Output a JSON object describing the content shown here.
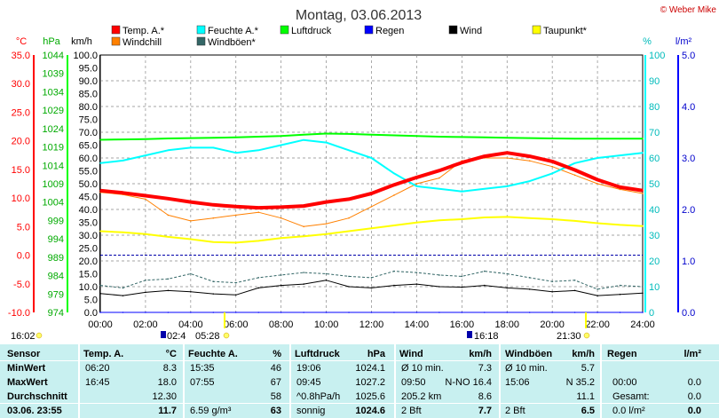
{
  "header": {
    "title": "Montag, 03.06.2013",
    "copyright": "© Weber Mike"
  },
  "legend": [
    {
      "label": "Temp. A.*",
      "color": "#ff0000"
    },
    {
      "label": "Feuchte A.*",
      "color": "#00ffff"
    },
    {
      "label": "Luftdruck",
      "color": "#00ff00"
    },
    {
      "label": "Regen",
      "color": "#0000ff"
    },
    {
      "label": "Wind",
      "color": "#000000"
    },
    {
      "label": "Taupunkt*",
      "color": "#ffff00"
    },
    {
      "label": "Windchill",
      "color": "#ff8000"
    },
    {
      "label": "Windböen*",
      "color": "#336666"
    }
  ],
  "axis_units": {
    "temp": "°C",
    "pressure": "hPa",
    "wind": "km/h",
    "humidity": "%",
    "rain": "l/m²"
  },
  "chart_data": {
    "type": "line",
    "x": [
      "00:00",
      "01:00",
      "02:00",
      "03:00",
      "04:00",
      "05:00",
      "06:00",
      "07:00",
      "08:00",
      "09:00",
      "10:00",
      "11:00",
      "12:00",
      "13:00",
      "14:00",
      "15:00",
      "16:00",
      "17:00",
      "18:00",
      "19:00",
      "20:00",
      "21:00",
      "22:00",
      "23:00",
      "24:00"
    ],
    "x_ticks": [
      "00:00",
      "02:00",
      "04:00",
      "06:00",
      "08:00",
      "10:00",
      "12:00",
      "14:00",
      "16:00",
      "18:00",
      "20:00",
      "22:00",
      "24:00"
    ],
    "axes": {
      "temp": {
        "label": "°C",
        "ylim": [
          -10,
          35
        ],
        "ticks": [
          "35.0",
          "30.0",
          "25.0",
          "20.0",
          "15.0",
          "10.0",
          "5.0",
          "0.0",
          "-5.0",
          "-10.0"
        ]
      },
      "pressure": {
        "label": "hPa",
        "ylim": [
          974,
          1049
        ],
        "ticks": [
          "1044",
          "1039",
          "1034",
          "1029",
          "1024",
          "1019",
          "1014",
          "1009",
          "1004",
          "999",
          "994",
          "989",
          "984",
          "979",
          "974"
        ]
      },
      "wind": {
        "label": "km/h",
        "ylim": [
          0,
          100
        ],
        "ticks": [
          "100.0",
          "95.0",
          "90.0",
          "85.0",
          "80.0",
          "75.0",
          "70.0",
          "65.0",
          "60.0",
          "55.0",
          "50.0",
          "45.0",
          "40.0",
          "35.0",
          "30.0",
          "25.0",
          "20.0",
          "15.0",
          "10.0",
          "5.0",
          "0.0"
        ]
      },
      "humidity": {
        "label": "%",
        "ylim": [
          0,
          100
        ],
        "ticks": [
          "100",
          "90",
          "80",
          "70",
          "60",
          "50",
          "40",
          "30",
          "20",
          "10",
          "0"
        ]
      },
      "rain": {
        "label": "l/m²",
        "ylim": [
          0,
          5
        ],
        "ticks": [
          "5.0",
          "4.0",
          "3.0",
          "2.0",
          "1.0",
          "0.0"
        ]
      }
    },
    "series": [
      {
        "name": "Temp. A.*",
        "axis": "temp",
        "color": "#ff0000",
        "values": [
          11.3,
          10.9,
          10.4,
          9.9,
          9.3,
          8.8,
          8.5,
          8.3,
          8.4,
          8.6,
          9.3,
          9.8,
          10.8,
          12.3,
          13.6,
          14.8,
          16.2,
          17.3,
          17.9,
          17.3,
          16.4,
          14.9,
          13.2,
          11.9,
          11.3
        ]
      },
      {
        "name": "Windchill",
        "axis": "temp",
        "color": "#ff8000",
        "values": [
          11.0,
          10.6,
          9.8,
          7.0,
          6.0,
          6.5,
          7.0,
          7.5,
          6.5,
          5.0,
          5.5,
          6.5,
          8.5,
          10.5,
          12.5,
          13.5,
          16.5,
          17.0,
          17.0,
          16.5,
          15.5,
          14.0,
          12.5,
          11.5,
          10.8
        ]
      },
      {
        "name": "Taupunkt*",
        "axis": "temp",
        "color": "#ffff00",
        "values": [
          4.2,
          4.0,
          3.7,
          3.2,
          2.8,
          2.3,
          2.2,
          2.5,
          3.0,
          3.3,
          3.7,
          4.2,
          4.7,
          5.2,
          5.7,
          6.1,
          6.3,
          6.6,
          6.7,
          6.5,
          6.3,
          6.0,
          5.6,
          5.3,
          5.1
        ]
      },
      {
        "name": "Feuchte A.*",
        "axis": "humidity",
        "color": "#00ffff",
        "values": [
          58,
          59,
          61,
          63,
          64,
          64,
          62,
          63,
          65,
          67,
          66,
          63,
          60,
          54,
          49,
          48,
          47,
          48,
          49,
          51,
          54,
          58,
          60,
          61,
          62
        ]
      },
      {
        "name": "Luftdruck",
        "axis": "pressure",
        "color": "#00ff00",
        "values": [
          1024.3,
          1024.4,
          1024.5,
          1024.7,
          1024.8,
          1024.9,
          1025.0,
          1025.2,
          1025.4,
          1025.8,
          1026.1,
          1026.0,
          1025.8,
          1025.6,
          1025.4,
          1025.2,
          1025.1,
          1025.0,
          1024.9,
          1024.8,
          1024.7,
          1024.6,
          1024.6,
          1024.6,
          1024.6
        ]
      },
      {
        "name": "Wind",
        "axis": "wind",
        "color": "#000000",
        "values": [
          7.3,
          6.5,
          7.8,
          8.5,
          8.0,
          7.2,
          6.8,
          9.5,
          10.5,
          11.0,
          12.5,
          10.0,
          9.5,
          10.5,
          11.0,
          10.0,
          9.8,
          10.5,
          9.5,
          9.0,
          8.0,
          8.5,
          6.5,
          7.0,
          7.5
        ]
      },
      {
        "name": "Windböen*",
        "axis": "wind",
        "color": "#336666",
        "values": [
          10.5,
          9.5,
          12.5,
          13.0,
          15.0,
          12.0,
          11.5,
          13.5,
          14.5,
          15.5,
          15.0,
          14.0,
          13.5,
          16.0,
          15.5,
          14.5,
          14.0,
          16.0,
          15.0,
          13.5,
          12.0,
          12.5,
          9.0,
          10.5,
          10.0
        ]
      },
      {
        "name": "Regen",
        "axis": "rain",
        "color": "#0000ff",
        "values": [
          0,
          0,
          0,
          0,
          0,
          0,
          0,
          0,
          0,
          0,
          0,
          0,
          0,
          0,
          0,
          0,
          0,
          0,
          0,
          0,
          0,
          0,
          0,
          0,
          0
        ]
      }
    ],
    "grid": true,
    "legend_position": "top"
  },
  "sun": {
    "sunrise_label": "05:28",
    "sunset_label": "21:30",
    "moon_rise_label": "02:4",
    "moon_set_label": "16:18",
    "left_label": "16:02"
  },
  "table": {
    "headers": [
      "Sensor",
      "Temp. A.",
      "°C",
      "Feuchte A.",
      "%",
      "Luftdruck",
      "hPa",
      "Wind",
      "km/h",
      "Windböen",
      "km/h",
      "Regen",
      "l/m²"
    ],
    "row_labels": [
      "MinWert",
      "MaxWert",
      "Durchschnitt",
      "03.06.  23:55"
    ],
    "temp": [
      [
        "06:20",
        "8.3"
      ],
      [
        "16:45",
        "18.0"
      ],
      [
        "",
        "12.30"
      ],
      [
        "",
        "11.7"
      ]
    ],
    "hum": [
      [
        "15:35",
        "46"
      ],
      [
        "07:55",
        "67"
      ],
      [
        "",
        "58"
      ],
      [
        "6.59 g/m³",
        "63"
      ]
    ],
    "press": [
      [
        "19:06",
        "1024.1"
      ],
      [
        "09:45",
        "1027.2"
      ],
      [
        "^0.8hPa/h",
        "1025.6"
      ],
      [
        "sonnig",
        "1024.6"
      ]
    ],
    "wind": [
      [
        "Ø 10 min.",
        "7.3"
      ],
      [
        "09:50",
        "N-NO 16.4"
      ],
      [
        "205.2 km",
        "8.6"
      ],
      [
        "2 Bft",
        "7.7"
      ]
    ],
    "gust": [
      [
        "Ø 10 min.",
        "5.7"
      ],
      [
        "15:06",
        "N 35.2"
      ],
      [
        "",
        "11.1"
      ],
      [
        "2 Bft",
        "6.5"
      ]
    ],
    "rain": [
      [
        "",
        ""
      ],
      [
        "00:00",
        "0.0"
      ],
      [
        "Gesamt:",
        "0.0"
      ],
      [
        "0.0 l/m²",
        "0.0"
      ]
    ]
  }
}
